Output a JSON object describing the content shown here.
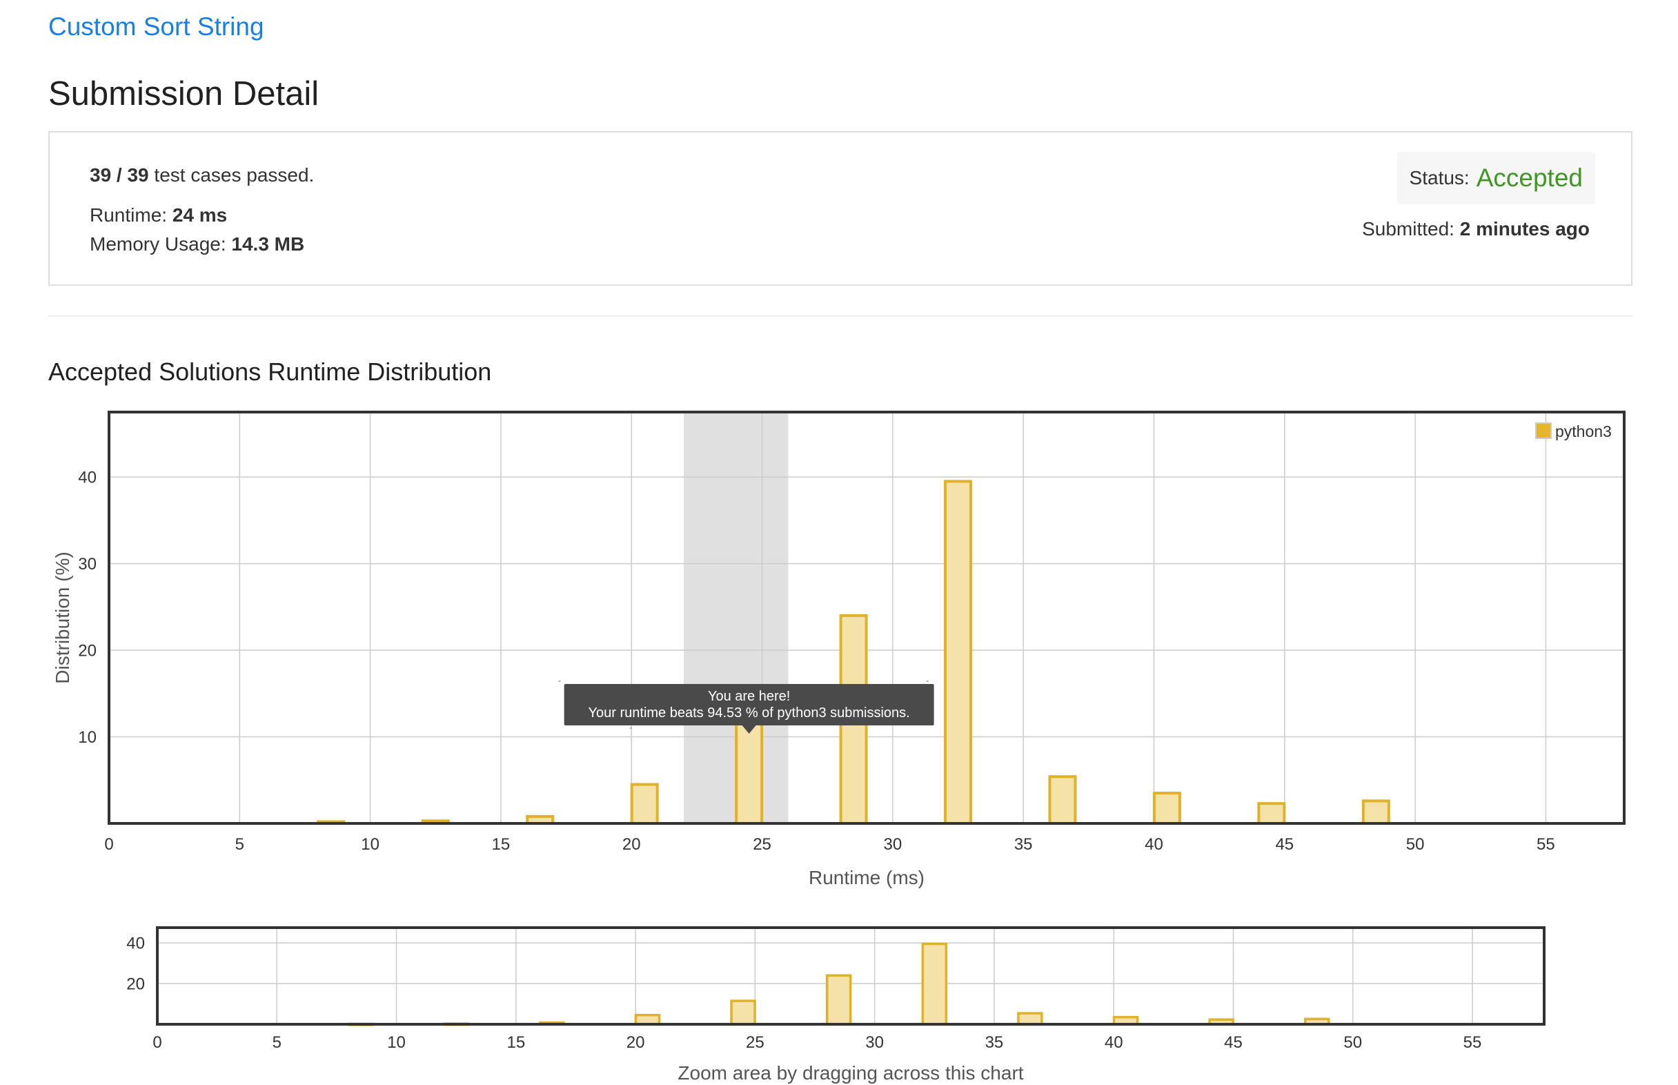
{
  "problem": {
    "title": "Custom Sort String"
  },
  "page": {
    "title": "Submission Detail"
  },
  "result": {
    "passed": "39 / 39",
    "passed_suffix": "test cases passed.",
    "runtime_label": "Runtime:",
    "runtime_value": "24 ms",
    "memory_label": "Memory Usage:",
    "memory_value": "14.3 MB",
    "status_label": "Status:",
    "status_value": "Accepted",
    "submitted_label": "Submitted:",
    "submitted_value": "2 minutes ago"
  },
  "section": {
    "title": "Accepted Solutions Runtime Distribution"
  },
  "colors": {
    "bar_fill": "#f5e2a8",
    "bar_stroke": "#e0b22a",
    "legend_swatch": "#e7b52c",
    "highlight_band": "#e0e0e0",
    "tooltip_bg": "#4a4a4a",
    "accepted": "#3f9624",
    "link": "#1a7fe0"
  },
  "chart_data": [
    {
      "type": "bar",
      "title": "",
      "xlabel": "Runtime (ms)",
      "ylabel": "Distribution (%)",
      "xlim": [
        0,
        58
      ],
      "ylim": [
        0,
        47.5
      ],
      "xticks": [
        0,
        5,
        10,
        15,
        20,
        25,
        30,
        35,
        40,
        45,
        50,
        55
      ],
      "yticks": [
        10,
        20,
        30,
        40
      ],
      "grid": true,
      "legend": {
        "position": "top-right",
        "entries": [
          "python3"
        ]
      },
      "series": [
        {
          "name": "python3",
          "x": [
            8.5,
            12.5,
            16.5,
            20.5,
            24.5,
            28.5,
            32.5,
            36.5,
            40.5,
            44.5,
            48.5
          ],
          "values": [
            0.2,
            0.3,
            0.8,
            4.5,
            11.5,
            24.0,
            39.5,
            5.4,
            3.5,
            2.3,
            2.6
          ]
        }
      ],
      "highlight": {
        "x_from": 22,
        "x_to": 26
      },
      "tooltip": {
        "x": 24.5,
        "line1": "You are here!",
        "line2": "Your runtime beats 94.53 % of python3 submissions."
      }
    },
    {
      "type": "bar",
      "title": "",
      "xlabel": "Zoom area by dragging across this chart",
      "xlim": [
        0,
        58
      ],
      "ylim": [
        0,
        47.5
      ],
      "xticks": [
        0,
        5,
        10,
        15,
        20,
        25,
        30,
        35,
        40,
        45,
        50,
        55
      ],
      "yticks": [
        20,
        40
      ],
      "grid": true,
      "series": [
        {
          "x": [
            8.5,
            12.5,
            16.5,
            20.5,
            24.5,
            28.5,
            32.5,
            36.5,
            40.5,
            44.5,
            48.5
          ],
          "values": [
            0.2,
            0.3,
            0.8,
            4.5,
            11.5,
            24.0,
            39.5,
            5.4,
            3.5,
            2.3,
            2.6
          ]
        }
      ]
    }
  ]
}
